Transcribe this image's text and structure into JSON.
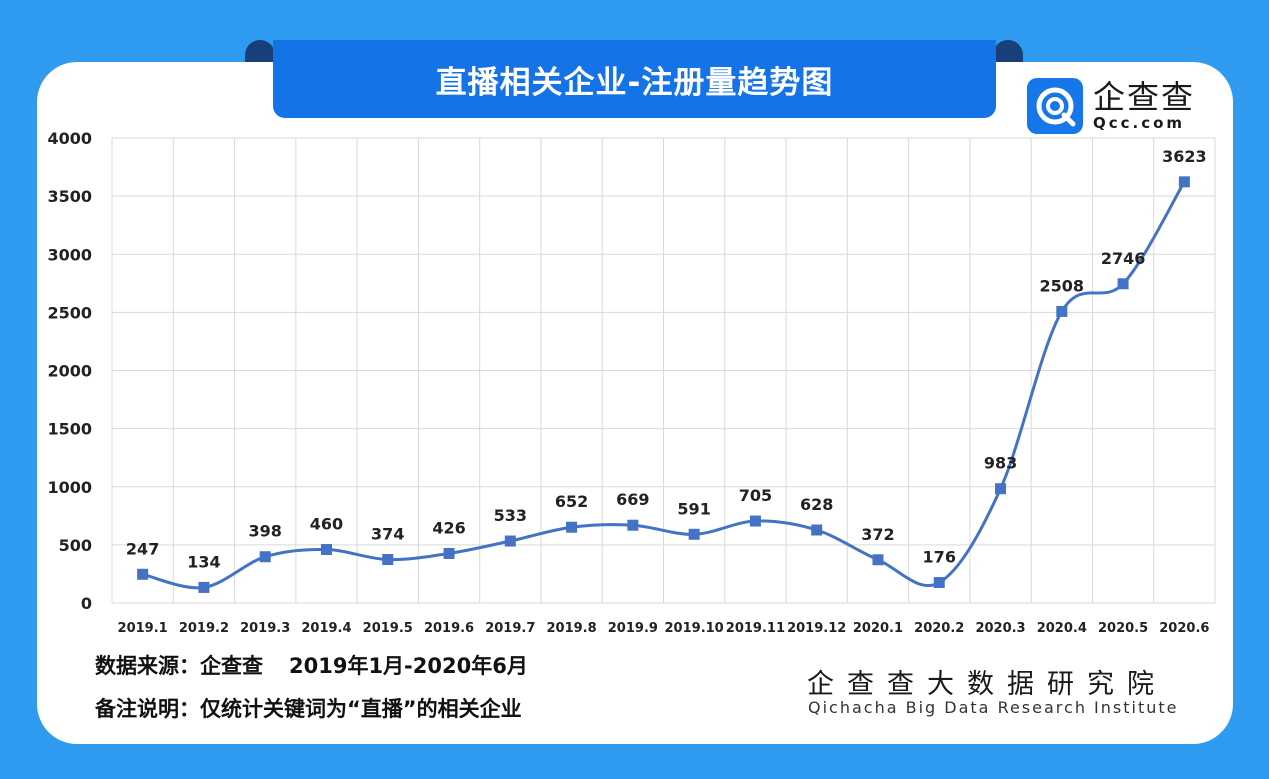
{
  "title": "直播相关企业-注册量趋势图",
  "logo": {
    "name": "企查查",
    "url": "Qcc.com"
  },
  "colors": {
    "background": "#2f9bf0",
    "title_bar": "#1473e6",
    "line": "#4472c4",
    "grid": "#d9d9d9"
  },
  "footer": {
    "source_label": "数据来源：企查查",
    "source_range": "2019年1月-2020年6月",
    "note": "备注说明：仅统计关键词为“直播”的相关企业",
    "institute_cn": "企查查大数据研究院",
    "institute_en": "Qichacha Big Data Research Institute"
  },
  "chart_data": {
    "type": "line",
    "title": "直播相关企业-注册量趋势图",
    "xlabel": "",
    "ylabel": "",
    "categories": [
      "2019.1",
      "2019.2",
      "2019.3",
      "2019.4",
      "2019.5",
      "2019.6",
      "2019.7",
      "2019.8",
      "2019.9",
      "2019.10",
      "2019.11",
      "2019.12",
      "2020.1",
      "2020.2",
      "2020.3",
      "2020.4",
      "2020.5",
      "2020.6"
    ],
    "values": [
      247,
      134,
      398,
      460,
      374,
      426,
      533,
      652,
      669,
      591,
      705,
      628,
      372,
      176,
      983,
      2508,
      2746,
      3623
    ],
    "ylim": [
      0,
      4000
    ],
    "yticks": [
      0,
      500,
      1000,
      1500,
      2000,
      2500,
      3000,
      3500,
      4000
    ],
    "grid": true,
    "smooth": true,
    "marker": "square",
    "data_labels": true
  }
}
